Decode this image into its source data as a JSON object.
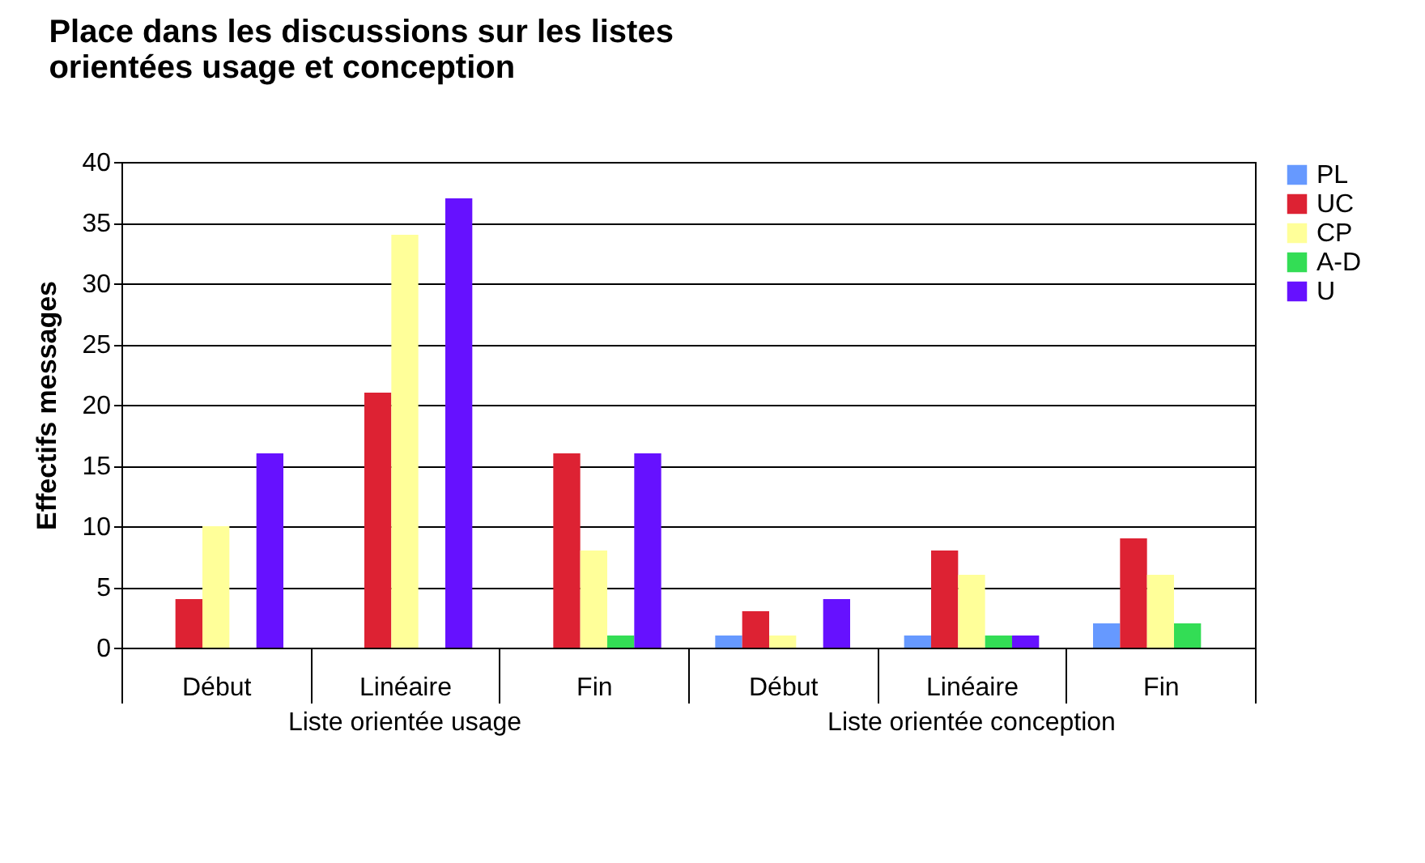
{
  "chart_data": {
    "type": "bar",
    "title": "Place dans les discussions sur les listes orientées usage et conception",
    "ylabel": "Effectifs messages",
    "categories": [
      "Début",
      "Linéaire",
      "Fin",
      "Début",
      "Linéaire",
      "Fin"
    ],
    "annotations": [
      "Liste orientée usage",
      "Liste orientée conception"
    ],
    "series": [
      {
        "name": "PL",
        "color": "#6699ff",
        "values": [
          0,
          0,
          0,
          1,
          1,
          2
        ]
      },
      {
        "name": "UC",
        "color": "#dd2233",
        "values": [
          4,
          21,
          16,
          3,
          8,
          9
        ]
      },
      {
        "name": "CP",
        "color": "#ffff99",
        "values": [
          10,
          34,
          8,
          1,
          6,
          6
        ]
      },
      {
        "name": "A-D",
        "color": "#33dd55",
        "values": [
          0,
          0,
          1,
          0,
          1,
          2
        ]
      },
      {
        "name": "U",
        "color": "#6611ff",
        "values": [
          16,
          37,
          16,
          4,
          1,
          0
        ]
      }
    ],
    "ylim": [
      0,
      40
    ],
    "yticks": [
      0,
      5,
      10,
      15,
      20,
      25,
      30,
      35,
      40
    ],
    "grid": "y",
    "legend": "right"
  }
}
